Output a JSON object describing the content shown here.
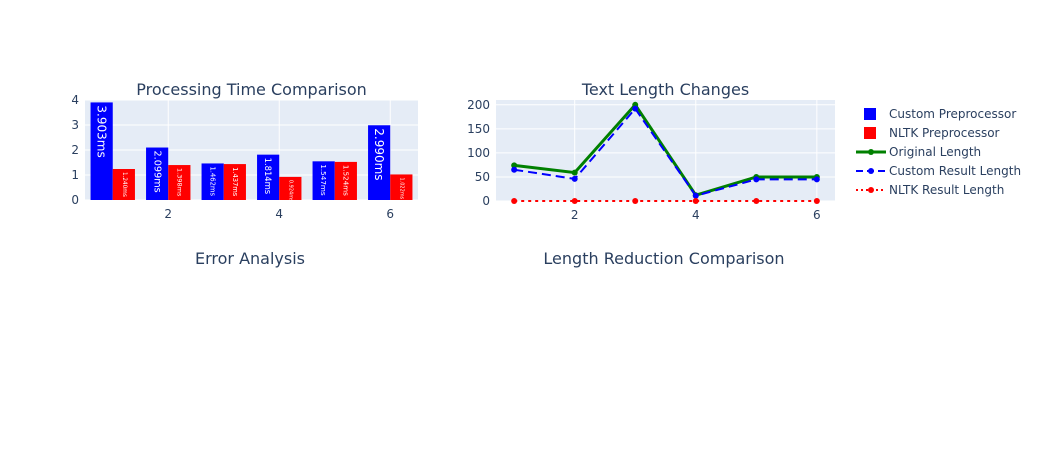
{
  "colors": {
    "plot_bg": "#e5ecf6",
    "grid": "#ffffff",
    "text": "#2a3f5f",
    "custom": "#0000ff",
    "nltk": "#ff0000",
    "original": "#008000"
  },
  "chart_data": [
    {
      "type": "bar",
      "title": "Processing Time Comparison",
      "x": [
        1,
        2,
        3,
        4,
        5,
        6
      ],
      "xticks": [
        "2",
        "4",
        "6"
      ],
      "yticks": [
        "0",
        "1",
        "2",
        "3",
        "4"
      ],
      "ylim": [
        0,
        4
      ],
      "series": [
        {
          "name": "Custom Preprocessor",
          "color": "#0000ff",
          "values": [
            3.903,
            2.099,
            1.462,
            1.814,
            1.547,
            2.99
          ],
          "labels": [
            "3.903ms",
            "2.099ms",
            "1.462ms",
            "1.814ms",
            "1.547ms",
            "2.990ms"
          ]
        },
        {
          "name": "NLTK Preprocessor",
          "color": "#ff0000",
          "values": [
            1.24,
            1.398,
            1.437,
            0.924,
            1.524,
            1.022
          ],
          "labels": [
            "1.240ms",
            "1.398ms",
            "1.437ms",
            "0.924ms",
            "1.524ms",
            "1.022ms"
          ]
        }
      ]
    },
    {
      "type": "line",
      "title": "Text Length Changes",
      "x": [
        1,
        2,
        3,
        4,
        5,
        6
      ],
      "xticks": [
        "2",
        "4",
        "6"
      ],
      "yticks": [
        "0",
        "50",
        "100",
        "150",
        "200"
      ],
      "ylim": [
        0,
        210
      ],
      "series": [
        {
          "name": "Original Length",
          "color": "#008000",
          "dash": "solid",
          "values": [
            74,
            59,
            200,
            12,
            50,
            50
          ]
        },
        {
          "name": "Custom Result Length",
          "color": "#0000ff",
          "dash": "dash",
          "values": [
            65,
            46,
            192,
            11,
            45,
            45
          ]
        },
        {
          "name": "NLTK Result Length",
          "color": "#ff0000",
          "dash": "dot",
          "values": [
            0,
            0,
            0,
            0,
            0,
            0
          ]
        }
      ]
    },
    {
      "type": "bar",
      "title": "Error Analysis"
    },
    {
      "type": "bar",
      "title": "Length Reduction Comparison"
    }
  ],
  "legend": {
    "items": [
      {
        "label": "Custom Preprocessor",
        "symbol": "square",
        "color": "#0000ff"
      },
      {
        "label": "NLTK Preprocessor",
        "symbol": "square",
        "color": "#ff0000"
      },
      {
        "label": "Original Length",
        "symbol": "line-solid",
        "color": "#008000"
      },
      {
        "label": "Custom Result Length",
        "symbol": "line-dash",
        "color": "#0000ff"
      },
      {
        "label": "NLTK Result Length",
        "symbol": "line-dot",
        "color": "#ff0000"
      }
    ]
  }
}
